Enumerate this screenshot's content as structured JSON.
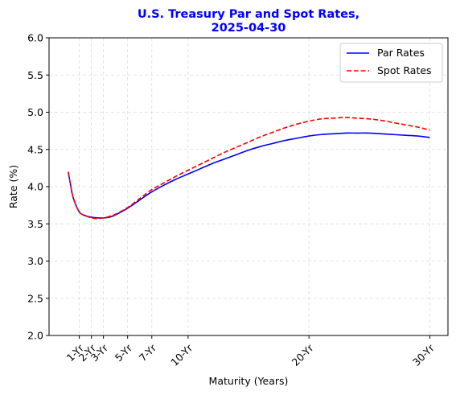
{
  "chart_data": {
    "type": "line",
    "title_line1": "U.S. Treasury Par and Spot Rates,",
    "title_line2": "2025-04-30",
    "title_color": "#0000ff",
    "xlabel": "Maturity (Years)",
    "ylabel": "Rate (%)",
    "xlim": [
      -1.5,
      31.5
    ],
    "ylim": [
      2.0,
      6.0
    ],
    "x_ticks": [
      {
        "value": 1,
        "label": "1-Yr"
      },
      {
        "value": 2,
        "label": "2-Yr"
      },
      {
        "value": 3,
        "label": "3-Yr"
      },
      {
        "value": 5,
        "label": "5-Yr"
      },
      {
        "value": 7,
        "label": "7-Yr"
      },
      {
        "value": 10,
        "label": "10-Yr"
      },
      {
        "value": 20,
        "label": "20-Yr"
      },
      {
        "value": 30,
        "label": "30-Yr"
      }
    ],
    "y_ticks": [
      "2.0",
      "2.5",
      "3.0",
      "3.5",
      "4.0",
      "4.5",
      "5.0",
      "5.5",
      "6.0"
    ],
    "grid": true,
    "legend_position": "top-right",
    "series": [
      {
        "name": "Par Rates",
        "color": "#0000ff",
        "style": "solid",
        "points": [
          [
            0.08,
            4.2
          ],
          [
            0.25,
            4.05
          ],
          [
            0.5,
            3.85
          ],
          [
            1,
            3.66
          ],
          [
            1.5,
            3.61
          ],
          [
            2,
            3.59
          ],
          [
            2.5,
            3.58
          ],
          [
            3,
            3.58
          ],
          [
            3.5,
            3.59
          ],
          [
            4,
            3.62
          ],
          [
            5,
            3.71
          ],
          [
            6,
            3.82
          ],
          [
            7,
            3.93
          ],
          [
            8,
            4.02
          ],
          [
            9,
            4.1
          ],
          [
            10,
            4.17
          ],
          [
            11,
            4.24
          ],
          [
            12,
            4.31
          ],
          [
            13,
            4.37
          ],
          [
            14,
            4.43
          ],
          [
            15,
            4.49
          ],
          [
            16,
            4.54
          ],
          [
            17,
            4.58
          ],
          [
            18,
            4.62
          ],
          [
            19,
            4.65
          ],
          [
            20,
            4.68
          ],
          [
            21,
            4.7
          ],
          [
            22,
            4.71
          ],
          [
            23,
            4.72
          ],
          [
            24,
            4.72
          ],
          [
            25,
            4.72
          ],
          [
            26,
            4.71
          ],
          [
            27,
            4.7
          ],
          [
            28,
            4.69
          ],
          [
            29,
            4.68
          ],
          [
            30,
            4.66
          ]
        ]
      },
      {
        "name": "Spot Rates",
        "color": "#ff0000",
        "style": "dashed",
        "points": [
          [
            0.08,
            4.2
          ],
          [
            0.25,
            4.05
          ],
          [
            0.5,
            3.85
          ],
          [
            1,
            3.66
          ],
          [
            1.5,
            3.61
          ],
          [
            2,
            3.58
          ],
          [
            2.5,
            3.57
          ],
          [
            3,
            3.58
          ],
          [
            3.5,
            3.6
          ],
          [
            4,
            3.63
          ],
          [
            5,
            3.72
          ],
          [
            6,
            3.84
          ],
          [
            7,
            3.96
          ],
          [
            8,
            4.05
          ],
          [
            9,
            4.14
          ],
          [
            10,
            4.22
          ],
          [
            11,
            4.3
          ],
          [
            12,
            4.38
          ],
          [
            13,
            4.46
          ],
          [
            14,
            4.53
          ],
          [
            15,
            4.6
          ],
          [
            16,
            4.67
          ],
          [
            17,
            4.73
          ],
          [
            18,
            4.79
          ],
          [
            19,
            4.84
          ],
          [
            20,
            4.88
          ],
          [
            21,
            4.91
          ],
          [
            22,
            4.92
          ],
          [
            23,
            4.93
          ],
          [
            24,
            4.92
          ],
          [
            25,
            4.91
          ],
          [
            26,
            4.89
          ],
          [
            27,
            4.86
          ],
          [
            28,
            4.83
          ],
          [
            29,
            4.8
          ],
          [
            30,
            4.76
          ]
        ]
      }
    ]
  }
}
